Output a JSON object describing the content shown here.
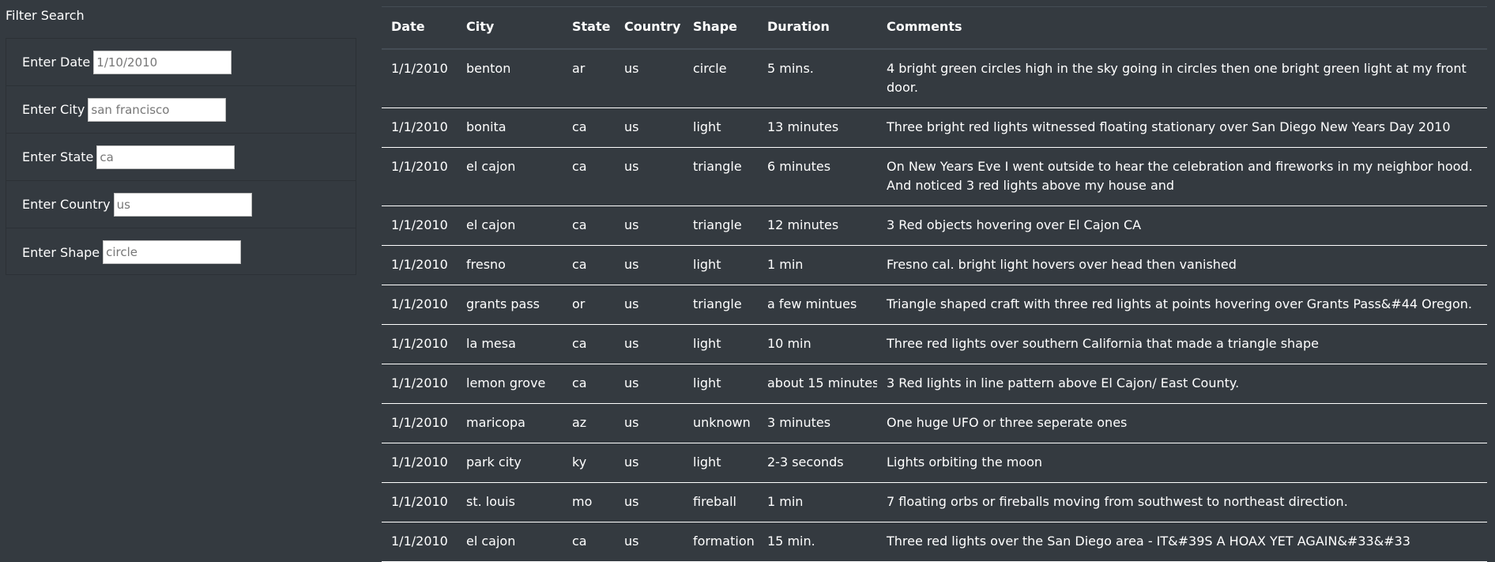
{
  "filter": {
    "title": "Filter Search",
    "fields": [
      {
        "label": "Enter Date",
        "placeholder": "1/10/2010"
      },
      {
        "label": "Enter City",
        "placeholder": "san francisco"
      },
      {
        "label": "Enter State",
        "placeholder": "ca"
      },
      {
        "label": "Enter Country",
        "placeholder": "us"
      },
      {
        "label": "Enter Shape",
        "placeholder": "circle"
      }
    ]
  },
  "table": {
    "headers": [
      "Date",
      "City",
      "State",
      "Country",
      "Shape",
      "Duration",
      "Comments"
    ],
    "rows": [
      [
        "1/1/2010",
        "benton",
        "ar",
        "us",
        "circle",
        "5 mins.",
        "4 bright green circles high in the sky going in circles then one bright green light at my front door."
      ],
      [
        "1/1/2010",
        "bonita",
        "ca",
        "us",
        "light",
        "13 minutes",
        "Three bright red lights witnessed floating stationary over San Diego New Years Day 2010"
      ],
      [
        "1/1/2010",
        "el cajon",
        "ca",
        "us",
        "triangle",
        "6 minutes",
        "On New Years Eve I went outside to hear the celebration and fireworks in my neighbor hood. And noticed 3 red lights above my house and"
      ],
      [
        "1/1/2010",
        "el cajon",
        "ca",
        "us",
        "triangle",
        "12 minutes",
        "3 Red objects hovering over El Cajon CA"
      ],
      [
        "1/1/2010",
        "fresno",
        "ca",
        "us",
        "light",
        "1 min",
        "Fresno cal. bright light hovers over head then vanished"
      ],
      [
        "1/1/2010",
        "grants pass",
        "or",
        "us",
        "triangle",
        "a few mintues",
        "Triangle shaped craft with three red lights at points hovering over Grants Pass&#44 Oregon."
      ],
      [
        "1/1/2010",
        "la mesa",
        "ca",
        "us",
        "light",
        "10 min",
        "Three red lights over southern California that made a triangle shape"
      ],
      [
        "1/1/2010",
        "lemon grove",
        "ca",
        "us",
        "light",
        "about 15 minutes",
        "3 Red lights in line pattern above El Cajon/ East County."
      ],
      [
        "1/1/2010",
        "maricopa",
        "az",
        "us",
        "unknown",
        "3 minutes",
        "One huge UFO or three seperate ones"
      ],
      [
        "1/1/2010",
        "park city",
        "ky",
        "us",
        "light",
        "2-3 seconds",
        "Lights orbiting the moon"
      ],
      [
        "1/1/2010",
        "st. louis",
        "mo",
        "us",
        "fireball",
        "1 min",
        "7 floating orbs or fireballs moving from southwest to northeast direction."
      ],
      [
        "1/1/2010",
        "el cajon",
        "ca",
        "us",
        "formation",
        "15 min.",
        "Three red lights over the San Diego area - IT&#39S A HOAX YET AGAIN&#33&#33"
      ]
    ]
  }
}
